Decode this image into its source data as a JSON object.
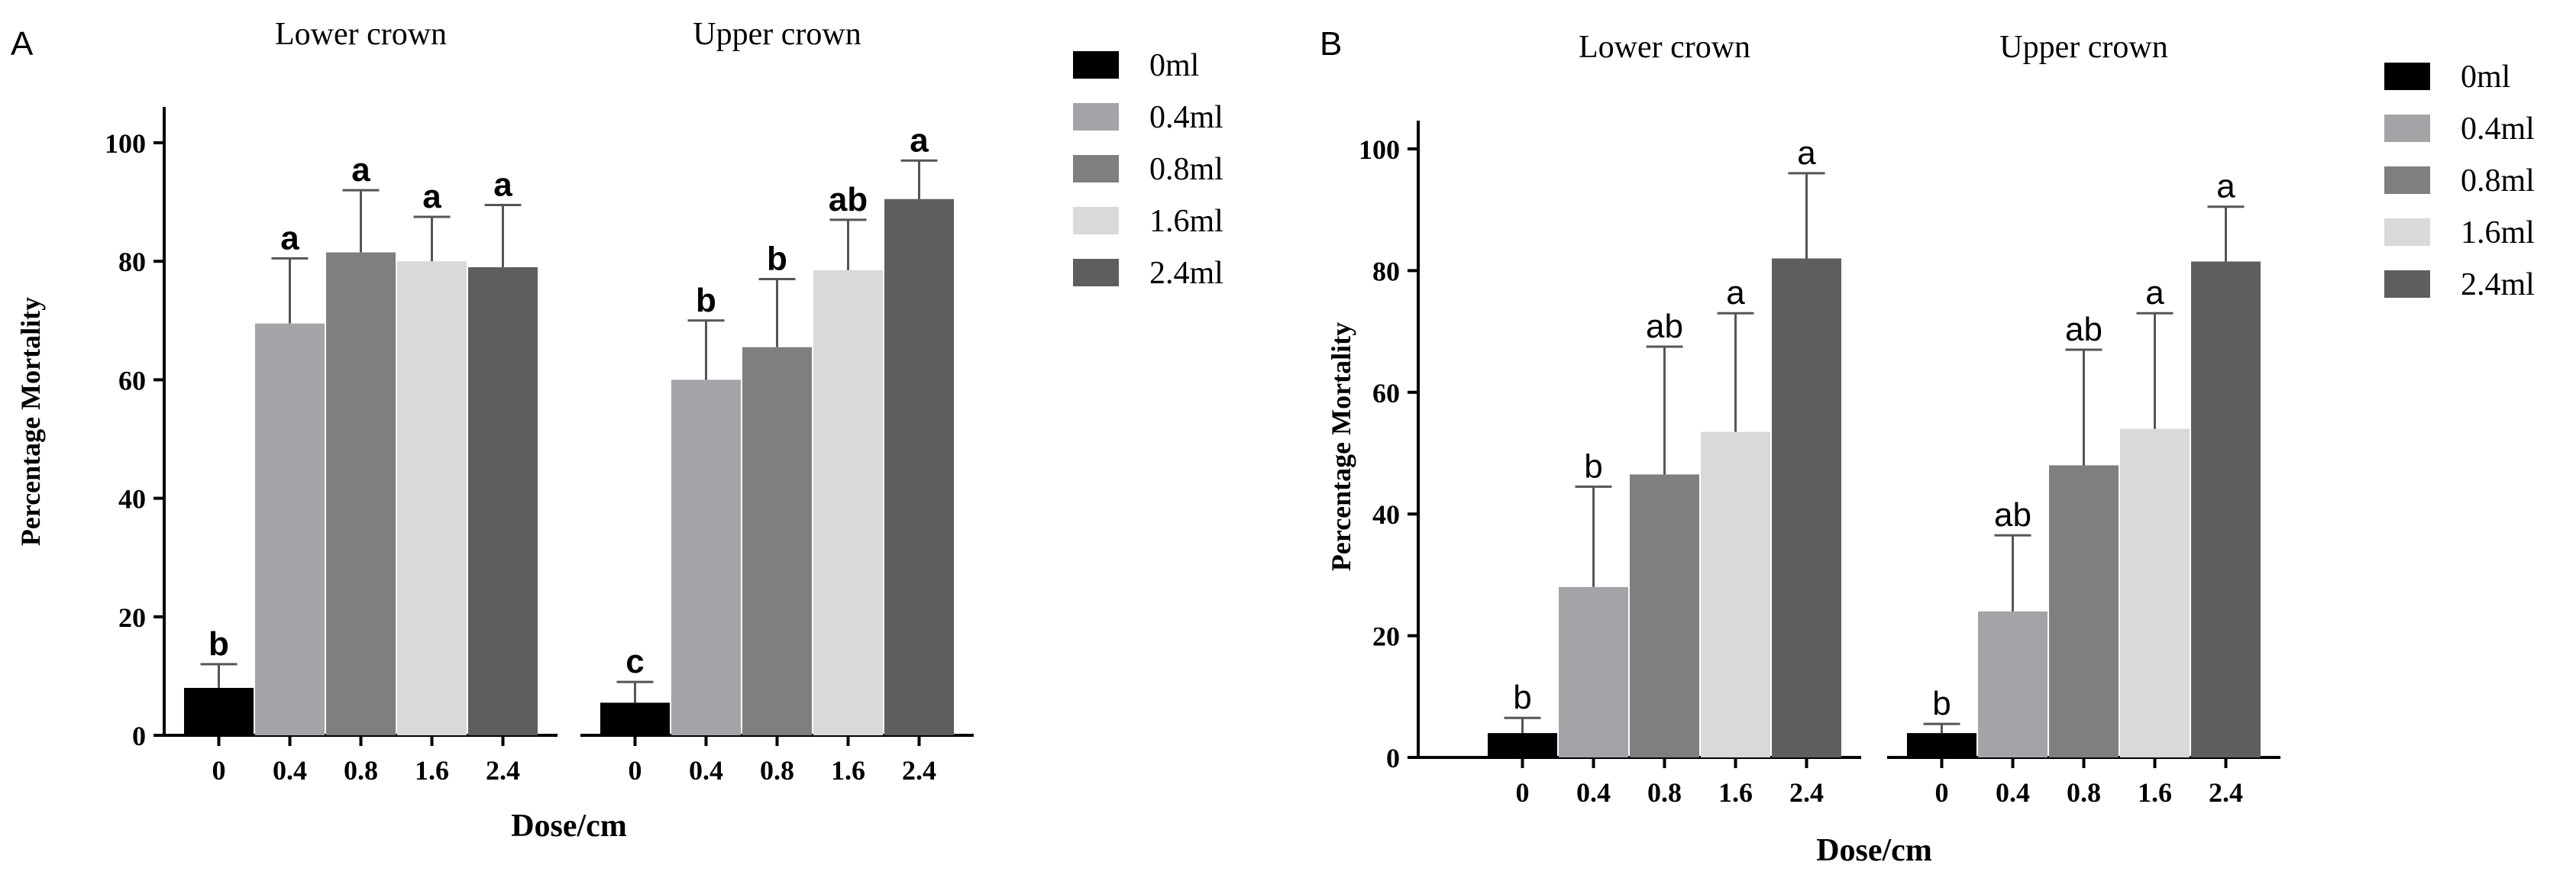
{
  "chart_data": [
    {
      "panel": "A",
      "type": "bar",
      "groups": [
        "Lower crown",
        "Upper crown"
      ],
      "categories": [
        "0",
        "0.4",
        "0.8",
        "1.6",
        "2.4"
      ],
      "series": [
        {
          "name": "0ml",
          "color": "#000000"
        },
        {
          "name": "0.4ml",
          "color": "#a4a4a8"
        },
        {
          "name": "0.8ml",
          "color": "#7f7f7f"
        },
        {
          "name": "1.6ml",
          "color": "#d9d9d9"
        },
        {
          "name": "2.4ml",
          "color": "#5e5e5e"
        }
      ],
      "values": [
        [
          8,
          69.5,
          81.5,
          80,
          79
        ],
        [
          5.5,
          60,
          65.5,
          78.5,
          90.5
        ]
      ],
      "errors": [
        [
          4,
          11,
          10.5,
          7.5,
          10.5
        ],
        [
          3.5,
          10,
          11.5,
          8.5,
          6.5
        ]
      ],
      "labels": [
        [
          "b",
          "a",
          "a",
          "a",
          "a"
        ],
        [
          "c",
          "b",
          "b",
          "ab",
          "a"
        ]
      ],
      "xlabel": "Dose/cm",
      "ylabel": "Percentage Mortality",
      "ylim": [
        0,
        105
      ],
      "yticks": [
        0,
        20,
        40,
        60,
        80,
        100
      ],
      "grid": false,
      "legend": "right"
    },
    {
      "panel": "B",
      "type": "bar",
      "groups": [
        "Lower crown",
        "Upper crown"
      ],
      "categories": [
        "0",
        "0.4",
        "0.8",
        "1.6",
        "2.4"
      ],
      "series": [
        {
          "name": "0ml",
          "color": "#000000"
        },
        {
          "name": "0.4ml",
          "color": "#a4a4a8"
        },
        {
          "name": "0.8ml",
          "color": "#7f7f7f"
        },
        {
          "name": "1.6ml",
          "color": "#d9d9d9"
        },
        {
          "name": "2.4ml",
          "color": "#5e5e5e"
        }
      ],
      "values": [
        [
          4,
          28,
          46.5,
          53.5,
          82
        ],
        [
          4,
          24,
          48,
          54,
          81.5
        ]
      ],
      "errors": [
        [
          2.5,
          16.5,
          21,
          19.5,
          14
        ],
        [
          1.5,
          12.5,
          19,
          19,
          9
        ]
      ],
      "labels": [
        [
          "b",
          "b",
          "ab",
          "a",
          "a"
        ],
        [
          "b",
          "ab",
          "ab",
          "a",
          "a"
        ]
      ],
      "xlabel": "Dose/cm",
      "ylabel": "Percentage Mortality",
      "ylim": [
        0,
        105
      ],
      "yticks": [
        0,
        20,
        40,
        60,
        80,
        100
      ],
      "grid": false,
      "legend": "right"
    }
  ]
}
